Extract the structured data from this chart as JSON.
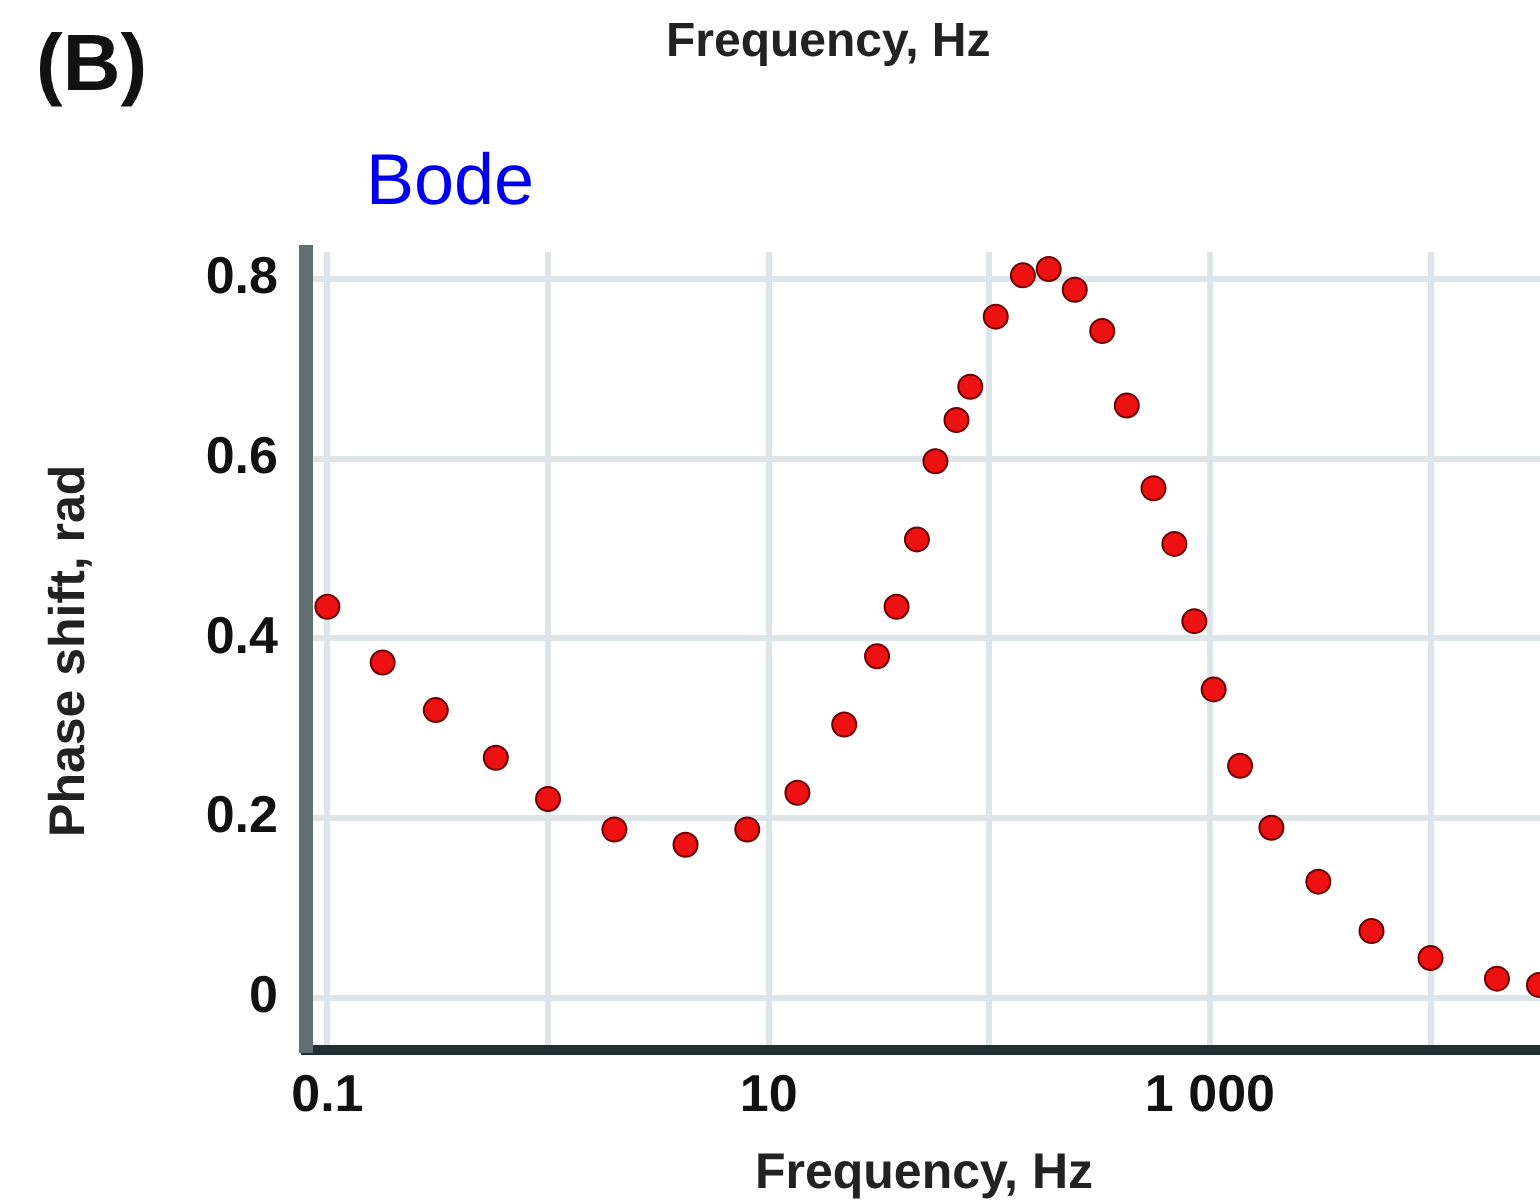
{
  "chart_data": {
    "type": "scatter",
    "xlabel": "Frequency, Hz",
    "ylabel": "Phase shift, rad",
    "annotations": [
      "(B)",
      "Bode",
      "Frequency, Hz"
    ],
    "log": "x",
    "grid": true,
    "legend": false,
    "marker": "circle",
    "xlim": [
      0.08,
      32000
    ],
    "ylim": [
      -0.058,
      0.83
    ],
    "xticks": [
      {
        "value": 0.1,
        "label": "0.1"
      },
      {
        "value": 1,
        "label": null
      },
      {
        "value": 10,
        "label": "10"
      },
      {
        "value": 100,
        "label": null
      },
      {
        "value": 1000,
        "label": "1 000"
      },
      {
        "value": 10000,
        "label": null
      }
    ],
    "yticks": [
      0,
      0.2,
      0.4,
      0.6,
      0.8
    ],
    "series": [
      {
        "color": "#ee1111",
        "x": [
          0.1,
          0.178,
          0.31,
          0.58,
          1.0,
          2.0,
          4.2,
          8.0,
          13.5,
          22,
          31,
          38,
          47,
          57,
          71,
          82,
          107,
          142,
          186,
          244,
          325,
          420,
          555,
          690,
          850,
          1040,
          1370,
          1900,
          3100,
          5400,
          10000,
          20000,
          31000
        ],
        "values": [
          0.435,
          0.373,
          0.32,
          0.267,
          0.221,
          0.187,
          0.17,
          0.187,
          0.228,
          0.304,
          0.38,
          0.435,
          0.51,
          0.597,
          0.643,
          0.68,
          0.758,
          0.804,
          0.811,
          0.788,
          0.742,
          0.659,
          0.567,
          0.505,
          0.419,
          0.343,
          0.258,
          0.189,
          0.129,
          0.074,
          0.044,
          0.021,
          0.014
        ]
      }
    ]
  }
}
